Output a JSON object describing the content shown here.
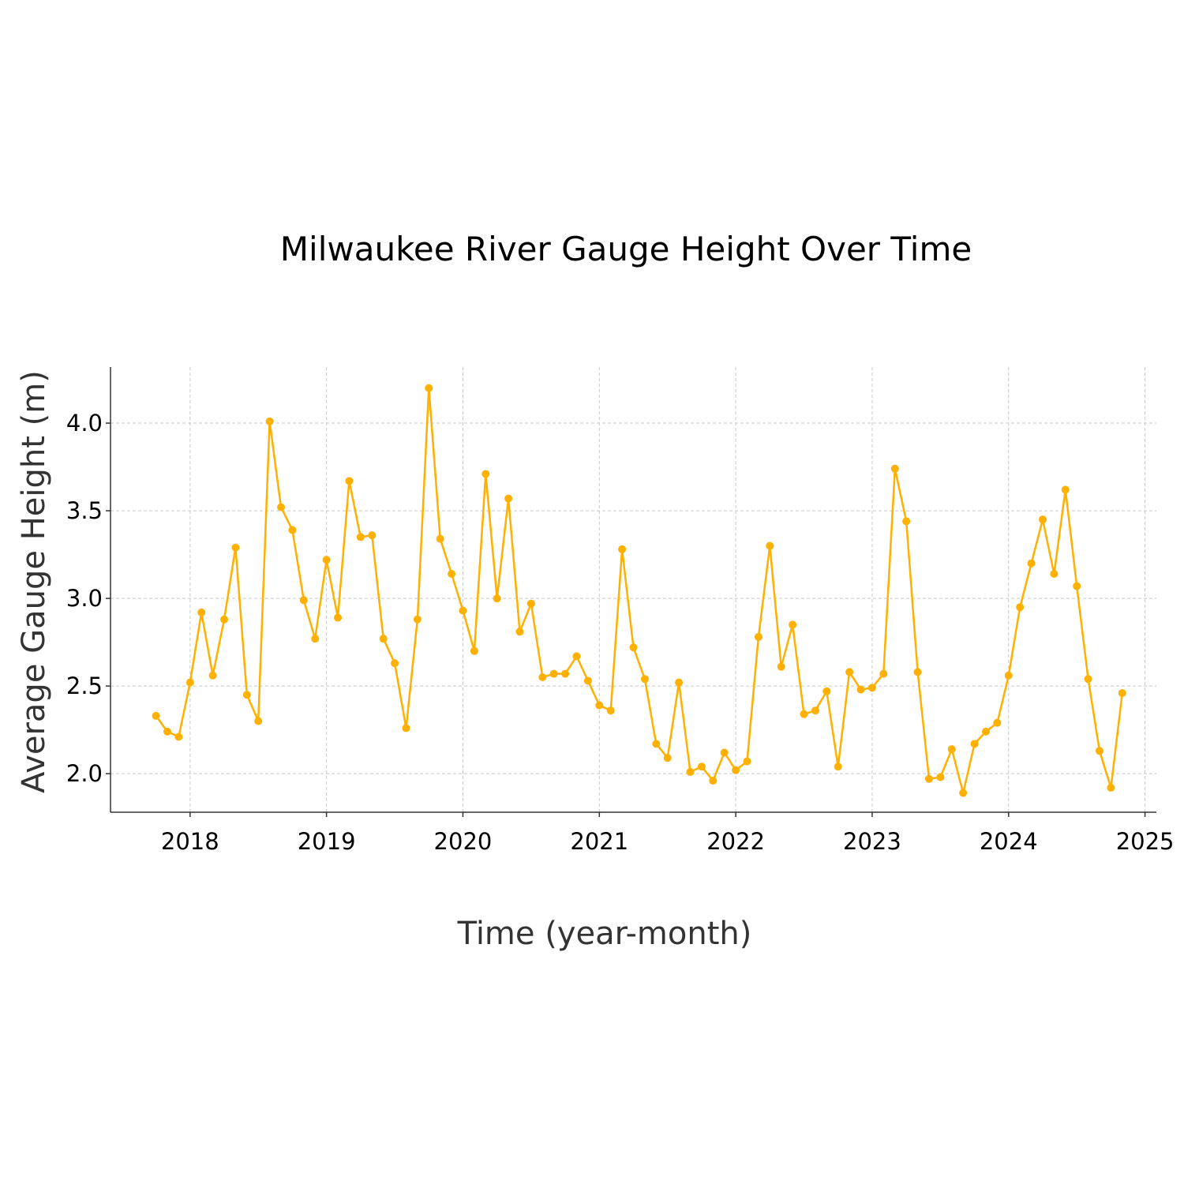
{
  "chart_data": {
    "type": "line",
    "title": "Milwaukee River Gauge Height Over Time",
    "xlabel": "Time (year-month)",
    "ylabel": "Average Gauge Height (m)",
    "x_ticks": [
      "2018",
      "2019",
      "2020",
      "2021",
      "2022",
      "2023",
      "2024",
      "2025"
    ],
    "y_ticks": [
      "2.0",
      "2.5",
      "3.0",
      "3.5",
      "4.0"
    ],
    "ylim": [
      1.78,
      4.32
    ],
    "xlim": [
      "2017-06",
      "2025-02"
    ],
    "grid": true,
    "color": "#FFB000",
    "series": [
      {
        "x": [
          "2017-10",
          "2017-11",
          "2017-12",
          "2018-01",
          "2018-02",
          "2018-03",
          "2018-04",
          "2018-05",
          "2018-06",
          "2018-07",
          "2018-08",
          "2018-09",
          "2018-10",
          "2018-11",
          "2018-12",
          "2019-01",
          "2019-02",
          "2019-03",
          "2019-04",
          "2019-05",
          "2019-06",
          "2019-07",
          "2019-08",
          "2019-09",
          "2019-10",
          "2019-11",
          "2019-12",
          "2020-01",
          "2020-02",
          "2020-03",
          "2020-04",
          "2020-05",
          "2020-06",
          "2020-07",
          "2020-08",
          "2020-09",
          "2020-10",
          "2020-11",
          "2020-12",
          "2021-01",
          "2021-02",
          "2021-03",
          "2021-04",
          "2021-05",
          "2021-06",
          "2021-07",
          "2021-08",
          "2021-09",
          "2021-10",
          "2021-11",
          "2021-12",
          "2022-01",
          "2022-02",
          "2022-03",
          "2022-04",
          "2022-05",
          "2022-06",
          "2022-07",
          "2022-08",
          "2022-09",
          "2022-10",
          "2022-11",
          "2022-12",
          "2023-01",
          "2023-02",
          "2023-03",
          "2023-04",
          "2023-05",
          "2023-06",
          "2023-07",
          "2023-08",
          "2023-09",
          "2023-10",
          "2023-11",
          "2023-12",
          "2024-01",
          "2024-02",
          "2024-03",
          "2024-04",
          "2024-05",
          "2024-06",
          "2024-07",
          "2024-08",
          "2024-09",
          "2024-10",
          "2024-11"
        ],
        "values": [
          2.33,
          2.24,
          2.21,
          2.52,
          2.92,
          2.56,
          2.88,
          3.29,
          2.45,
          2.3,
          4.01,
          3.52,
          3.39,
          2.99,
          2.77,
          3.22,
          2.89,
          3.67,
          3.35,
          3.36,
          2.77,
          2.63,
          2.26,
          2.88,
          4.2,
          3.34,
          3.14,
          2.93,
          2.7,
          3.71,
          3.0,
          3.57,
          2.81,
          2.97,
          2.55,
          2.57,
          2.57,
          2.67,
          2.53,
          2.39,
          2.36,
          3.28,
          2.72,
          2.54,
          2.17,
          2.09,
          2.52,
          2.01,
          2.04,
          1.96,
          2.12,
          2.02,
          2.07,
          2.78,
          3.3,
          2.61,
          2.85,
          2.34,
          2.36,
          2.47,
          2.04,
          2.58,
          2.48,
          2.49,
          2.57,
          3.74,
          3.44,
          2.58,
          1.97,
          1.98,
          2.14,
          1.89,
          2.17,
          2.24,
          2.29,
          2.56,
          2.95,
          3.2,
          3.45,
          3.14,
          3.62,
          3.07,
          2.54,
          2.13,
          1.92,
          2.46
        ]
      }
    ]
  }
}
